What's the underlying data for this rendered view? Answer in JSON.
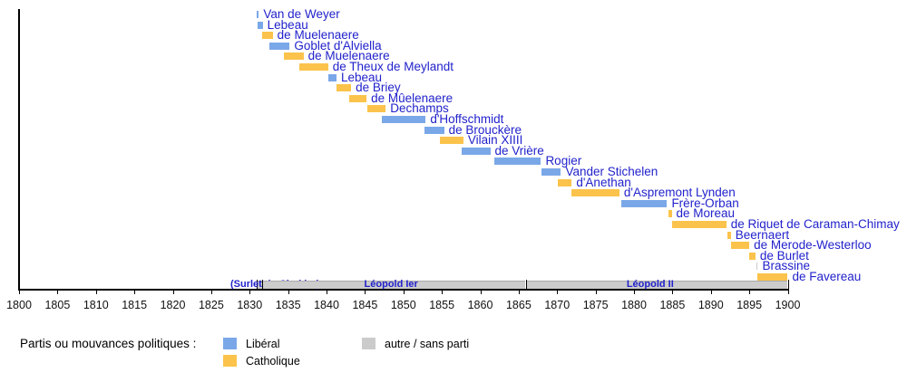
{
  "chart_data": {
    "type": "gantt",
    "title": "",
    "description": "Timeline of Belgian ministers of foreign affairs 1800-1900 colored by political party, with royal reigns strip",
    "x_axis": {
      "min": 1800,
      "max": 1900,
      "tick_step": 5,
      "ticks": [
        1800,
        1805,
        1810,
        1815,
        1820,
        1825,
        1830,
        1835,
        1840,
        1845,
        1850,
        1855,
        1860,
        1865,
        1870,
        1875,
        1880,
        1885,
        1890,
        1895,
        1900
      ]
    },
    "party_colors": {
      "liberal": "#7AA7E8",
      "catholique": "#FBC34B",
      "autre": "#CBCBCB"
    },
    "label_color": "#2222CC",
    "ministers": [
      {
        "name": "Van de Weyer",
        "party": "liberal",
        "start": 1830.9,
        "end": 1831.2
      },
      {
        "name": "Lebeau",
        "party": "liberal",
        "start": 1831.0,
        "end": 1831.7
      },
      {
        "name": "de Muelenaere",
        "party": "catholique",
        "start": 1831.6,
        "end": 1833.0
      },
      {
        "name": "Goblet d'Alviella",
        "party": "liberal",
        "start": 1832.6,
        "end": 1835.2
      },
      {
        "name": "de Muelenaere",
        "party": "catholique",
        "start": 1834.5,
        "end": 1837.0
      },
      {
        "name": "de Theux de Meylandt",
        "party": "catholique",
        "start": 1836.5,
        "end": 1840.2
      },
      {
        "name": "Lebeau",
        "party": "liberal",
        "start": 1840.2,
        "end": 1841.3
      },
      {
        "name": "de Briey",
        "party": "catholique",
        "start": 1841.3,
        "end": 1843.2
      },
      {
        "name": "de Mûelenaere",
        "party": "catholique",
        "start": 1843.0,
        "end": 1845.2
      },
      {
        "name": "Dechamps",
        "party": "catholique",
        "start": 1845.3,
        "end": 1847.7
      },
      {
        "name": "d'Hoffschmidt",
        "party": "liberal",
        "start": 1847.2,
        "end": 1852.9
      },
      {
        "name": "de Brouckère",
        "party": "liberal",
        "start": 1852.7,
        "end": 1855.3
      },
      {
        "name": "Vilain XIIII",
        "party": "catholique",
        "start": 1854.8,
        "end": 1857.8
      },
      {
        "name": "de Vrière",
        "party": "liberal",
        "start": 1857.6,
        "end": 1861.3
      },
      {
        "name": "Rogier",
        "party": "liberal",
        "start": 1861.8,
        "end": 1867.9
      },
      {
        "name": "Vander Stichelen",
        "party": "liberal",
        "start": 1868.0,
        "end": 1870.5
      },
      {
        "name": "d'Anethan",
        "party": "catholique",
        "start": 1870.1,
        "end": 1871.9
      },
      {
        "name": "d'Aspremont Lynden",
        "party": "catholique",
        "start": 1871.9,
        "end": 1878.1
      },
      {
        "name": "Frère-Orban",
        "party": "liberal",
        "start": 1878.4,
        "end": 1884.3
      },
      {
        "name": "de Moreau",
        "party": "catholique",
        "start": 1884.5,
        "end": 1884.9
      },
      {
        "name": "de Riquet de Caraman-Chimay",
        "party": "catholique",
        "start": 1884.9,
        "end": 1892.0
      },
      {
        "name": "Beernaert",
        "party": "catholique",
        "start": 1892.1,
        "end": 1892.6
      },
      {
        "name": "de Merode-Westerloo",
        "party": "catholique",
        "start": 1892.6,
        "end": 1895.0
      },
      {
        "name": "de Burlet",
        "party": "catholique",
        "start": 1895.0,
        "end": 1895.8
      },
      {
        "name": "Brassine",
        "party": "autre",
        "start": 1895.9,
        "end": 1896.1
      },
      {
        "name": "de Favereau",
        "party": "catholique",
        "start": 1896.1,
        "end": 1900.0
      }
    ],
    "reigns": [
      {
        "name": "(Surlet de Chokier)",
        "start": 1830.9,
        "end": 1831.6,
        "label_year": 1833.3
      },
      {
        "name": "Léopold Ier",
        "start": 1831.6,
        "end": 1865.9,
        "label_year": 1848.4
      },
      {
        "name": "Léopold II",
        "start": 1865.9,
        "end": 1900.0,
        "label_year": 1882.1
      }
    ],
    "legend": {
      "title": "Partis ou mouvances politiques :",
      "items": [
        {
          "label": "Libéral",
          "party": "liberal"
        },
        {
          "label": "Catholique",
          "party": "catholique"
        },
        {
          "label": "autre / sans parti",
          "party": "autre"
        }
      ]
    }
  }
}
